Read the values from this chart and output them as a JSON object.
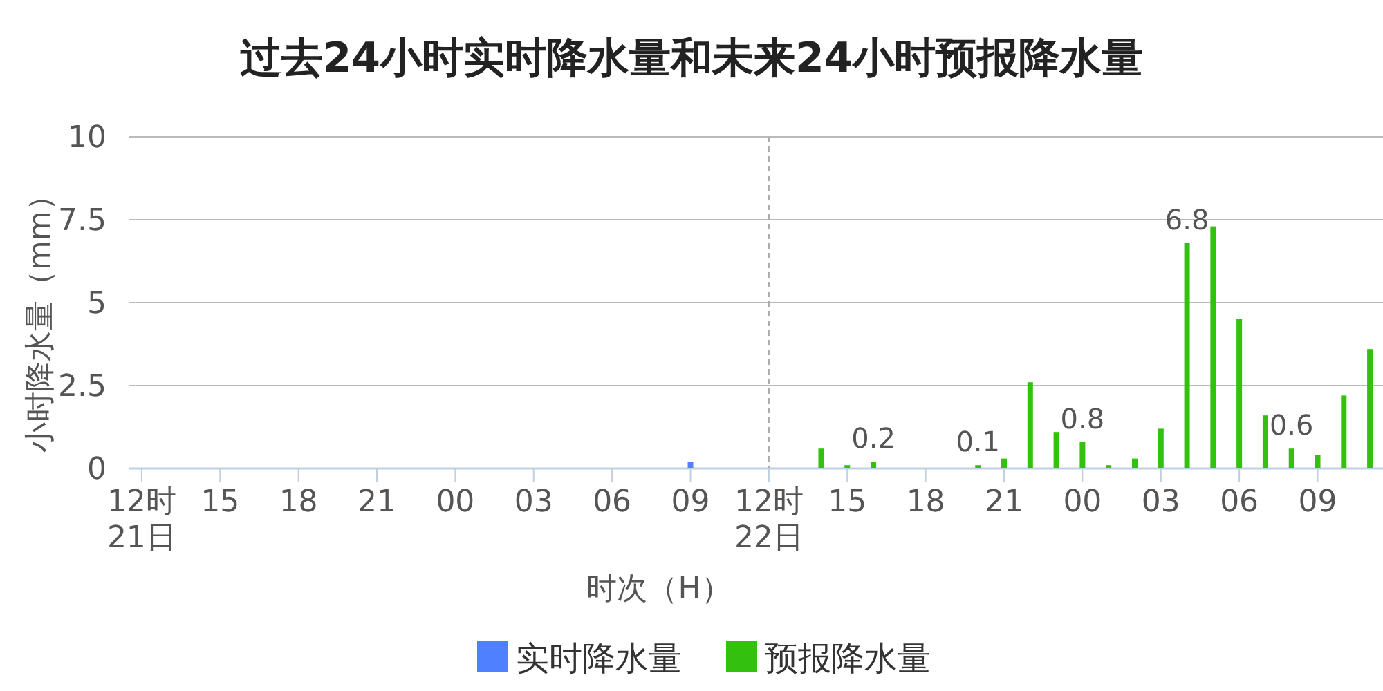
{
  "chart_data": {
    "type": "bar",
    "title": "过去24小时实时降水量和未来24小时预报降水量",
    "xlabel": "时次（H）",
    "ylabel": "小时降水量（mm）",
    "categories": [
      "12时\n21日",
      null,
      null,
      "15",
      null,
      null,
      "18",
      null,
      null,
      "21",
      null,
      null,
      "00",
      null,
      null,
      "03",
      null,
      null,
      "06",
      null,
      null,
      "09",
      null,
      null,
      "12时\n22日",
      null,
      null,
      "15",
      null,
      null,
      "18",
      null,
      null,
      "21",
      null,
      null,
      "00",
      null,
      null,
      "03",
      null,
      null,
      "06",
      null,
      null,
      "09",
      null,
      null
    ],
    "series": [
      {
        "name": "实时降水量",
        "color": "#4f80ff",
        "values": [
          null,
          null,
          null,
          null,
          null,
          null,
          null,
          null,
          null,
          null,
          null,
          null,
          null,
          null,
          null,
          null,
          null,
          null,
          null,
          null,
          null,
          0.2,
          null,
          null,
          null,
          null,
          null,
          null,
          null,
          null,
          null,
          null,
          null,
          null,
          null,
          null,
          null,
          null,
          null,
          null,
          null,
          null,
          null,
          null,
          null,
          null,
          null,
          null
        ]
      },
      {
        "name": "预报降水量",
        "color": "#33c00f",
        "values": [
          null,
          null,
          null,
          null,
          null,
          null,
          null,
          null,
          null,
          null,
          null,
          null,
          null,
          null,
          null,
          null,
          null,
          null,
          null,
          null,
          null,
          null,
          null,
          null,
          null,
          null,
          0.6,
          0.1,
          0.2,
          null,
          null,
          null,
          0.1,
          0.3,
          2.6,
          1.1,
          0.8,
          0.1,
          0.3,
          1.2,
          6.8,
          7.3,
          4.5,
          1.6,
          0.6,
          0.4,
          2.2,
          3.6
        ],
        "value_labels": [
          null,
          null,
          null,
          null,
          null,
          null,
          null,
          null,
          null,
          null,
          null,
          null,
          null,
          null,
          null,
          null,
          null,
          null,
          null,
          null,
          null,
          null,
          null,
          null,
          null,
          null,
          null,
          null,
          "0.2",
          null,
          null,
          null,
          "0.1",
          null,
          null,
          null,
          "0.8",
          null,
          null,
          null,
          "6.8",
          null,
          null,
          null,
          "0.6",
          null,
          null,
          null
        ]
      }
    ],
    "ylim": [
      0,
      10
    ],
    "yticks": [
      0,
      {
        "value": 2.5,
        "label": "2.5"
      },
      5,
      {
        "value": 7.5,
        "label": "7.5"
      },
      10
    ],
    "grid": "y",
    "legend": "bottom",
    "ref_lines": [
      {
        "axis": "x",
        "value": "12时\n22日",
        "color": "#aaaaaa",
        "line_style": "dashed"
      }
    ]
  }
}
